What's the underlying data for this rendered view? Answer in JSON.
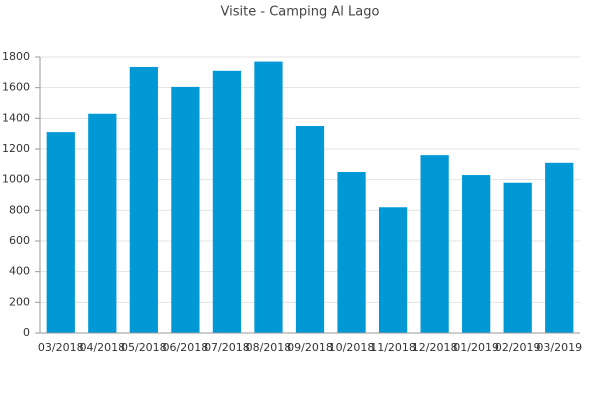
{
  "chart_data": {
    "type": "bar",
    "title": "Visite - Camping Al Lago",
    "categories": [
      "03/2018",
      "04/2018",
      "05/2018",
      "06/2018",
      "07/2018",
      "08/2018",
      "09/2018",
      "10/2018",
      "11/2018",
      "12/2018",
      "01/2019",
      "02/2019",
      "03/2019"
    ],
    "values": [
      1310,
      1430,
      1735,
      1605,
      1710,
      1770,
      1350,
      1050,
      820,
      1160,
      1030,
      980,
      1110
    ],
    "color": "#0099d6",
    "ylim": [
      0,
      1800
    ],
    "yticks": [
      0,
      200,
      400,
      600,
      800,
      1000,
      1200,
      1400,
      1600,
      1800
    ],
    "grid": true
  }
}
